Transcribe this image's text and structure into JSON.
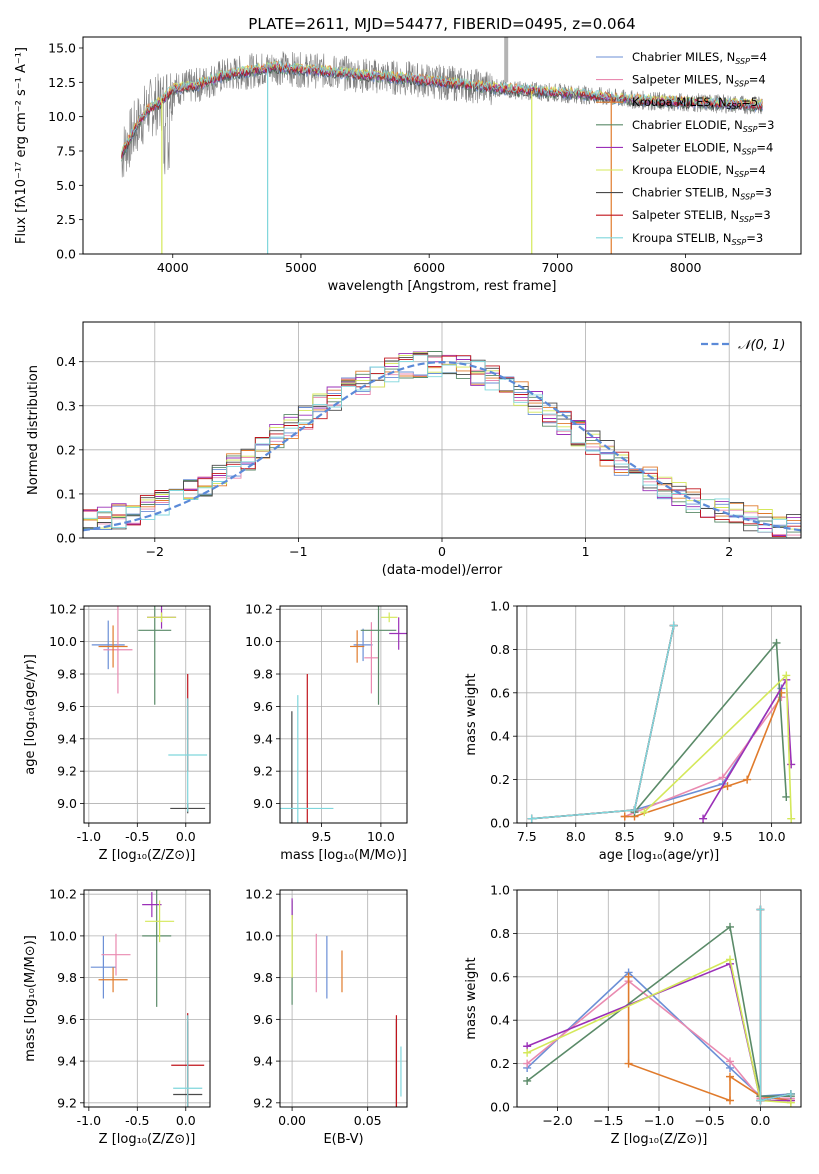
{
  "colors": {
    "chabrier_miles": "#6b8fd6",
    "salpeter_miles": "#e98ab0",
    "kroupa_miles": "#e07b2c",
    "chabrier_elodie": "#5a8a68",
    "salpeter_elodie": "#9b30b8",
    "kroupa_elodie": "#d4e85a",
    "chabrier_stelib": "#4a4a4a",
    "salpeter_stelib": "#c0141c",
    "kroupa_stelib": "#7fd6dc",
    "data_spectrum": "#808080",
    "normal_curve": "#5b8ad8"
  },
  "chart_data": [
    {
      "id": "spectrum",
      "type": "line",
      "title": "PLATE=2611, MJD=54477, FIBERID=0495, z=0.064",
      "xlabel": "wavelength [Angstrom, rest frame]",
      "ylabel": "Flux [fλ10⁻¹⁷ erg cm⁻² s⁻¹ A⁻¹]",
      "xlim": [
        3300,
        8900
      ],
      "ylim": [
        0,
        15.8
      ],
      "xticks": [
        4000,
        5000,
        6000,
        7000,
        8000
      ],
      "yticks": [
        0.0,
        2.5,
        5.0,
        7.5,
        10.0,
        12.5,
        15.0
      ],
      "legend_position": "top-right",
      "legend": [
        "Chabrier MILES, N_SSP=4",
        "Salpeter MILES, N_SSP=4",
        "Kroupa MILES, N_SSP=5",
        "Chabrier ELODIE, N_SSP=3",
        "Salpeter ELODIE, N_SSP=4",
        "Kroupa ELODIE, N_SSP=4",
        "Chabrier STELIB, N_SSP=3",
        "Salpeter STELIB, N_SSP=3",
        "Kroupa STELIB, N_SSP=3"
      ],
      "continuum": [
        [
          3600,
          7.2
        ],
        [
          3700,
          9.0
        ],
        [
          3800,
          10.5
        ],
        [
          3900,
          11.0
        ],
        [
          4000,
          12.0
        ],
        [
          4200,
          12.3
        ],
        [
          4400,
          13.0
        ],
        [
          4600,
          13.3
        ],
        [
          4800,
          13.6
        ],
        [
          5000,
          13.4
        ],
        [
          5200,
          13.3
        ],
        [
          5500,
          13.0
        ],
        [
          5800,
          12.8
        ],
        [
          6000,
          12.6
        ],
        [
          6300,
          12.3
        ],
        [
          6600,
          12.0
        ],
        [
          6900,
          11.8
        ],
        [
          7200,
          11.6
        ],
        [
          7500,
          11.3
        ],
        [
          7800,
          11.1
        ],
        [
          8100,
          11.0
        ],
        [
          8400,
          10.9
        ],
        [
          8600,
          10.8
        ]
      ]
    },
    {
      "id": "residual_hist",
      "type": "histogram",
      "xlabel": "(data-model)/error",
      "ylabel": "Normed distribution",
      "xlim": [
        -2.5,
        2.5
      ],
      "ylim": [
        0,
        0.49
      ],
      "xticks": [
        -2,
        -1,
        0,
        1,
        2
      ],
      "yticks": [
        0.0,
        0.1,
        0.2,
        0.3,
        0.4
      ],
      "legend": [
        "𝒩(0, 1)"
      ],
      "legend_position": "top-right",
      "bin_width": 0.1,
      "bins_start": -2.5
    },
    {
      "id": "age_vs_Z",
      "type": "scatter",
      "xlabel": "Z [log₁₀(Z/Z⊙)]",
      "ylabel": "age  [log₁₀(age/yr)]",
      "xlim": [
        -1.05,
        0.25
      ],
      "ylim": [
        8.88,
        10.22
      ],
      "xticks": [
        -1.0,
        -0.5,
        0.0
      ],
      "yticks": [
        9.0,
        9.2,
        9.4,
        9.6,
        9.8,
        10.0,
        10.2
      ],
      "crosses": [
        {
          "model": "chabrier_miles",
          "x": -0.8,
          "y": 9.98,
          "xerr": 0.17,
          "yerr": 0.15
        },
        {
          "model": "salpeter_miles",
          "x": -0.7,
          "y": 9.95,
          "xerr": 0.15,
          "yerr": 0.27
        },
        {
          "model": "kroupa_miles",
          "x": -0.75,
          "y": 9.97,
          "xerr": 0.15,
          "yerr": 0.13
        },
        {
          "model": "chabrier_elodie",
          "x": -0.32,
          "y": 10.07,
          "xerr": 0.17,
          "yerr": 0.46
        },
        {
          "model": "salpeter_elodie",
          "x": -0.25,
          "y": 10.15,
          "xerr": 0.15,
          "yerr": 0.07
        },
        {
          "model": "kroupa_elodie",
          "x": -0.25,
          "y": 10.15,
          "xerr": 0.15,
          "yerr": 0.03
        },
        {
          "model": "chabrier_stelib",
          "x": 0.02,
          "y": 8.97,
          "xerr": 0.18,
          "yerr": 0.03
        },
        {
          "model": "salpeter_stelib",
          "x": 0.02,
          "y": 9.5,
          "xerr": 0.0,
          "yerr": 0.3
        },
        {
          "model": "kroupa_stelib",
          "x": 0.02,
          "y": 9.3,
          "xerr": 0.2,
          "yerr": 0.35
        }
      ]
    },
    {
      "id": "age_vs_mass",
      "type": "scatter",
      "xlabel": "mass [log₁₀(M/M⊙)]",
      "ylabel": "",
      "xlim": [
        9.15,
        10.22
      ],
      "ylim": [
        8.88,
        10.22
      ],
      "xticks": [
        9.5,
        10.0
      ],
      "yticks": [
        9.0,
        9.2,
        9.4,
        9.6,
        9.8,
        10.0,
        10.2
      ],
      "crosses": [
        {
          "model": "chabrier_miles",
          "x": 9.85,
          "y": 9.98,
          "xerr": 0.08,
          "yerr": 0.1
        },
        {
          "model": "salpeter_miles",
          "x": 9.92,
          "y": 9.9,
          "xerr": 0.06,
          "yerr": 0.22
        },
        {
          "model": "kroupa_miles",
          "x": 9.8,
          "y": 9.97,
          "xerr": 0.06,
          "yerr": 0.1
        },
        {
          "model": "chabrier_elodie",
          "x": 9.98,
          "y": 10.07,
          "xerr": 0.15,
          "yerr": 0.46
        },
        {
          "model": "salpeter_elodie",
          "x": 10.15,
          "y": 10.05,
          "xerr": 0.08,
          "yerr": 0.1
        },
        {
          "model": "kroupa_elodie",
          "x": 10.07,
          "y": 10.15,
          "xerr": 0.07,
          "yerr": 0.03
        },
        {
          "model": "chabrier_stelib",
          "x": 9.25,
          "y": 8.97,
          "xerr": 0.0,
          "yerr": 0.6
        },
        {
          "model": "salpeter_stelib",
          "x": 9.38,
          "y": 9.3,
          "xerr": 0.0,
          "yerr": 0.5
        },
        {
          "model": "kroupa_stelib",
          "x": 9.3,
          "y": 8.97,
          "xerr": 0.3,
          "yerr": 0.7
        }
      ]
    },
    {
      "id": "weight_vs_age",
      "type": "line",
      "xlabel": "age  [log₁₀(age/yr)]",
      "ylabel": "mass weight",
      "xlim": [
        7.4,
        10.3
      ],
      "ylim": [
        0,
        1.0
      ],
      "xticks": [
        7.5,
        8.0,
        8.5,
        9.0,
        9.5,
        10.0
      ],
      "yticks": [
        0.0,
        0.2,
        0.4,
        0.6,
        0.8,
        1.0
      ],
      "series": [
        {
          "model": "chabrier_miles",
          "points": [
            [
              8.6,
              0.06
            ],
            [
              9.5,
              0.18
            ],
            [
              10.1,
              0.62
            ]
          ]
        },
        {
          "model": "salpeter_miles",
          "points": [
            [
              8.5,
              0.03
            ],
            [
              9.5,
              0.21
            ],
            [
              10.1,
              0.58
            ]
          ]
        },
        {
          "model": "kroupa_miles",
          "points": [
            [
              8.5,
              0.03
            ],
            [
              8.6,
              0.03
            ],
            [
              9.55,
              0.17
            ],
            [
              9.75,
              0.2
            ],
            [
              10.1,
              0.6
            ]
          ]
        },
        {
          "model": "chabrier_elodie",
          "points": [
            [
              8.6,
              0.05
            ],
            [
              10.05,
              0.83
            ],
            [
              10.15,
              0.12
            ]
          ]
        },
        {
          "model": "salpeter_elodie",
          "points": [
            [
              9.3,
              0.02
            ],
            [
              10.15,
              0.66
            ],
            [
              10.2,
              0.27
            ]
          ]
        },
        {
          "model": "kroupa_elodie",
          "points": [
            [
              8.7,
              0.05
            ],
            [
              10.15,
              0.68
            ],
            [
              10.2,
              0.02
            ]
          ]
        },
        {
          "model": "chabrier_stelib",
          "points": [
            [
              7.55,
              0.02
            ],
            [
              8.6,
              0.06
            ],
            [
              9.0,
              0.91
            ]
          ]
        },
        {
          "model": "salpeter_stelib",
          "points": [
            [
              7.55,
              0.02
            ],
            [
              8.6,
              0.06
            ],
            [
              9.0,
              0.91
            ]
          ]
        },
        {
          "model": "kroupa_stelib",
          "points": [
            [
              7.55,
              0.02
            ],
            [
              8.6,
              0.06
            ],
            [
              9.0,
              0.91
            ]
          ]
        }
      ]
    },
    {
      "id": "mass_vs_Z",
      "type": "scatter",
      "xlabel": "Z [log₁₀(Z/Z⊙)]",
      "ylabel": "mass [log₁₀(M/M⊙)]",
      "xlim": [
        -1.05,
        0.25
      ],
      "ylim": [
        9.18,
        10.22
      ],
      "xticks": [
        -1.0,
        -0.5,
        0.0
      ],
      "yticks": [
        9.2,
        9.4,
        9.6,
        9.8,
        10.0,
        10.2
      ],
      "crosses": [
        {
          "model": "chabrier_miles",
          "x": -0.85,
          "y": 9.85,
          "xerr": 0.13,
          "yerr": 0.15
        },
        {
          "model": "salpeter_miles",
          "x": -0.72,
          "y": 9.91,
          "xerr": 0.15,
          "yerr": 0.1
        },
        {
          "model": "kroupa_miles",
          "x": -0.75,
          "y": 9.79,
          "xerr": 0.15,
          "yerr": 0.06
        },
        {
          "model": "chabrier_elodie",
          "x": -0.3,
          "y": 10.0,
          "xerr": 0.15,
          "yerr": 0.34
        },
        {
          "model": "salpeter_elodie",
          "x": -0.35,
          "y": 10.15,
          "xerr": 0.1,
          "yerr": 0.06
        },
        {
          "model": "kroupa_elodie",
          "x": -0.27,
          "y": 10.07,
          "xerr": 0.15,
          "yerr": 0.1
        },
        {
          "model": "chabrier_stelib",
          "x": 0.02,
          "y": 9.24,
          "xerr": 0.15,
          "yerr": 0.35
        },
        {
          "model": "salpeter_stelib",
          "x": 0.02,
          "y": 9.38,
          "xerr": 0.17,
          "yerr": 0.25
        },
        {
          "model": "kroupa_stelib",
          "x": 0.02,
          "y": 9.27,
          "xerr": 0.15,
          "yerr": 0.35
        }
      ]
    },
    {
      "id": "mass_vs_ebv",
      "type": "scatter",
      "xlabel": "E(B-V)",
      "ylabel": "",
      "xlim": [
        -0.008,
        0.076
      ],
      "ylim": [
        9.18,
        10.22
      ],
      "xticks": [
        0.0,
        0.05
      ],
      "yticks": [
        9.2,
        9.4,
        9.6,
        9.8,
        10.0,
        10.2
      ],
      "crosses": [
        {
          "model": "chabrier_miles",
          "x": 0.023,
          "y": 9.85,
          "xerr": 0.0,
          "yerr": 0.15
        },
        {
          "model": "salpeter_miles",
          "x": 0.016,
          "y": 9.87,
          "xerr": 0.0,
          "yerr": 0.14
        },
        {
          "model": "kroupa_miles",
          "x": 0.033,
          "y": 9.83,
          "xerr": 0.0,
          "yerr": 0.1
        },
        {
          "model": "chabrier_elodie",
          "x": 0.0,
          "y": 9.92,
          "xerr": 0.0,
          "yerr": 0.25
        },
        {
          "model": "salpeter_elodie",
          "x": 0.0,
          "y": 10.13,
          "xerr": 0.0,
          "yerr": 0.05
        },
        {
          "model": "kroupa_elodie",
          "x": 0.0,
          "y": 9.95,
          "xerr": 0.0,
          "yerr": 0.15
        },
        {
          "model": "chabrier_stelib",
          "x": 0.069,
          "y": 9.35,
          "xerr": 0.0,
          "yerr": 0.25
        },
        {
          "model": "salpeter_stelib",
          "x": 0.069,
          "y": 9.35,
          "xerr": 0.0,
          "yerr": 0.27
        },
        {
          "model": "kroupa_stelib",
          "x": 0.072,
          "y": 9.35,
          "xerr": 0.0,
          "yerr": 0.12
        }
      ]
    },
    {
      "id": "weight_vs_Z",
      "type": "line",
      "xlabel": "Z [log₁₀(Z/Z⊙)]",
      "ylabel": "mass weight",
      "xlim": [
        -2.4,
        0.4
      ],
      "ylim": [
        0,
        1.0
      ],
      "xticks": [
        -2.0,
        -1.5,
        -1.0,
        -0.5,
        0.0
      ],
      "yticks": [
        0.0,
        0.2,
        0.4,
        0.6,
        0.8,
        1.0
      ],
      "series": [
        {
          "model": "chabrier_miles",
          "points": [
            [
              -2.3,
              0.18
            ],
            [
              -1.3,
              0.62
            ],
            [
              -0.3,
              0.18
            ],
            [
              0.0,
              0.05
            ],
            [
              0.3,
              0.06
            ]
          ]
        },
        {
          "model": "salpeter_miles",
          "points": [
            [
              -2.3,
              0.2
            ],
            [
              -1.3,
              0.58
            ],
            [
              -0.3,
              0.21
            ],
            [
              0.0,
              0.04
            ],
            [
              0.3,
              0.04
            ]
          ]
        },
        {
          "model": "kroupa_miles",
          "points": [
            [
              -1.3,
              0.6
            ],
            [
              -1.3,
              0.2
            ],
            [
              -0.3,
              0.03
            ],
            [
              -0.3,
              0.14
            ],
            [
              0.0,
              0.05
            ],
            [
              0.3,
              0.03
            ]
          ]
        },
        {
          "model": "chabrier_elodie",
          "points": [
            [
              -2.3,
              0.12
            ],
            [
              -0.3,
              0.83
            ],
            [
              0.0,
              0.05
            ],
            [
              0.3,
              0.05
            ]
          ]
        },
        {
          "model": "salpeter_elodie",
          "points": [
            [
              -2.3,
              0.28
            ],
            [
              -0.3,
              0.66
            ],
            [
              0.0,
              0.03
            ],
            [
              0.3,
              0.03
            ]
          ]
        },
        {
          "model": "kroupa_elodie",
          "points": [
            [
              -2.3,
              0.25
            ],
            [
              -0.3,
              0.68
            ],
            [
              0.0,
              0.03
            ],
            [
              0.3,
              0.02
            ]
          ]
        },
        {
          "model": "chabrier_stelib",
          "points": [
            [
              0.0,
              0.91
            ],
            [
              0.0,
              0.03
            ],
            [
              0.3,
              0.06
            ]
          ]
        },
        {
          "model": "salpeter_stelib",
          "points": [
            [
              0.0,
              0.91
            ],
            [
              0.0,
              0.03
            ],
            [
              0.3,
              0.06
            ]
          ]
        },
        {
          "model": "kroupa_stelib",
          "points": [
            [
              0.0,
              0.91
            ],
            [
              0.0,
              0.03
            ],
            [
              0.3,
              0.06
            ]
          ]
        }
      ]
    }
  ]
}
